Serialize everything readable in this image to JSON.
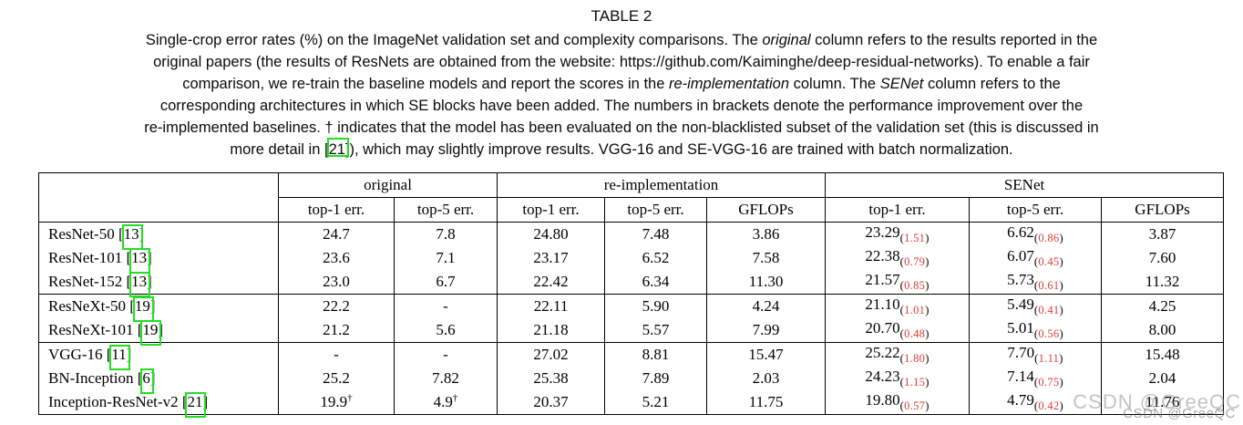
{
  "title": "TABLE 2",
  "caption": {
    "lines": [
      [
        {
          "t": "Single-crop error rates (%) on the ImageNet validation set and complexity comparisons. The "
        },
        {
          "t": "original",
          "i": true
        },
        {
          "t": " column refers to the results reported in the"
        }
      ],
      [
        {
          "t": "original papers (the results of ResNets are obtained from the website: https://github.com/Kaiminghe/deep-residual-networks). To enable a fair"
        }
      ],
      [
        {
          "t": "comparison, we re-train the baseline models and report the scores in the "
        },
        {
          "t": "re-implementation",
          "i": true
        },
        {
          "t": " column. The "
        },
        {
          "t": "SENet",
          "i": true
        },
        {
          "t": " column refers to the"
        }
      ],
      [
        {
          "t": "corresponding architectures in which SE blocks have been added. The numbers in brackets denote the performance improvement over the"
        }
      ],
      [
        {
          "t": "re-implemented baselines. † indicates that the model has been evaluated on the non-blacklisted subset of the validation set (this is discussed in"
        }
      ],
      [
        {
          "t": "more detail in ["
        },
        {
          "t": "21",
          "box": true
        },
        {
          "t": "]), which may slightly improve results. VGG-16 and SE-VGG-16 are trained with batch normalization."
        }
      ]
    ]
  },
  "table": {
    "groups": [
      "original",
      "re-implementation",
      "SENet"
    ],
    "subheaders": [
      "top-1 err.",
      "top-5 err.",
      "top-1 err.",
      "top-5 err.",
      "GFLOPs",
      "top-1 err.",
      "top-5 err.",
      "GFLOPs"
    ],
    "rows": [
      {
        "model": "ResNet-50",
        "cite": "13",
        "original": {
          "top1": "24.7",
          "top5": "7.8"
        },
        "reimpl": {
          "top1": "24.80",
          "top5": "7.48",
          "gflops": "3.86"
        },
        "senet": {
          "top1": "23.29",
          "top1_gain": "1.51",
          "top5": "6.62",
          "top5_gain": "0.86",
          "gflops": "3.87"
        },
        "group_end": false
      },
      {
        "model": "ResNet-101",
        "cite": "13",
        "original": {
          "top1": "23.6",
          "top5": "7.1"
        },
        "reimpl": {
          "top1": "23.17",
          "top5": "6.52",
          "gflops": "7.58"
        },
        "senet": {
          "top1": "22.38",
          "top1_gain": "0.79",
          "top5": "6.07",
          "top5_gain": "0.45",
          "gflops": "7.60"
        },
        "group_end": false
      },
      {
        "model": "ResNet-152",
        "cite": "13",
        "original": {
          "top1": "23.0",
          "top5": "6.7"
        },
        "reimpl": {
          "top1": "22.42",
          "top5": "6.34",
          "gflops": "11.30"
        },
        "senet": {
          "top1": "21.57",
          "top1_gain": "0.85",
          "top5": "5.73",
          "top5_gain": "0.61",
          "gflops": "11.32"
        },
        "group_end": true
      },
      {
        "model": "ResNeXt-50",
        "cite": "19",
        "original": {
          "top1": "22.2",
          "top5": "-"
        },
        "reimpl": {
          "top1": "22.11",
          "top5": "5.90",
          "gflops": "4.24"
        },
        "senet": {
          "top1": "21.10",
          "top1_gain": "1.01",
          "top5": "5.49",
          "top5_gain": "0.41",
          "gflops": "4.25"
        },
        "group_end": false
      },
      {
        "model": "ResNeXt-101",
        "cite": "19",
        "original": {
          "top1": "21.2",
          "top5": "5.6"
        },
        "reimpl": {
          "top1": "21.18",
          "top5": "5.57",
          "gflops": "7.99"
        },
        "senet": {
          "top1": "20.70",
          "top1_gain": "0.48",
          "top5": "5.01",
          "top5_gain": "0.56",
          "gflops": "8.00"
        },
        "group_end": true
      },
      {
        "model": "VGG-16",
        "cite": "11",
        "original": {
          "top1": "-",
          "top5": "-"
        },
        "reimpl": {
          "top1": "27.02",
          "top5": "8.81",
          "gflops": "15.47"
        },
        "senet": {
          "top1": "25.22",
          "top1_gain": "1.80",
          "top5": "7.70",
          "top5_gain": "1.11",
          "gflops": "15.48"
        },
        "group_end": false
      },
      {
        "model": "BN-Inception",
        "cite": "6",
        "original": {
          "top1": "25.2",
          "top5": "7.82"
        },
        "reimpl": {
          "top1": "25.38",
          "top5": "7.89",
          "gflops": "2.03"
        },
        "senet": {
          "top1": "24.23",
          "top1_gain": "1.15",
          "top5": "7.14",
          "top5_gain": "0.75",
          "gflops": "2.04"
        },
        "group_end": false
      },
      {
        "model": "Inception-ResNet-v2",
        "cite": "21",
        "original": {
          "top1": "19.9",
          "top1_dagger": true,
          "top5": "4.9",
          "top5_dagger": true
        },
        "reimpl": {
          "top1": "20.37",
          "top5": "5.21",
          "gflops": "11.75"
        },
        "senet": {
          "top1": "19.80",
          "top1_gain": "0.57",
          "top5": "4.79",
          "top5_gain": "0.42",
          "gflops": "11.76"
        },
        "group_end": false
      }
    ]
  },
  "watermark": {
    "text": "CSDN @GreeQC"
  },
  "colors": {
    "link_green": "#22dd22",
    "improvement_red": "#e33b36"
  }
}
